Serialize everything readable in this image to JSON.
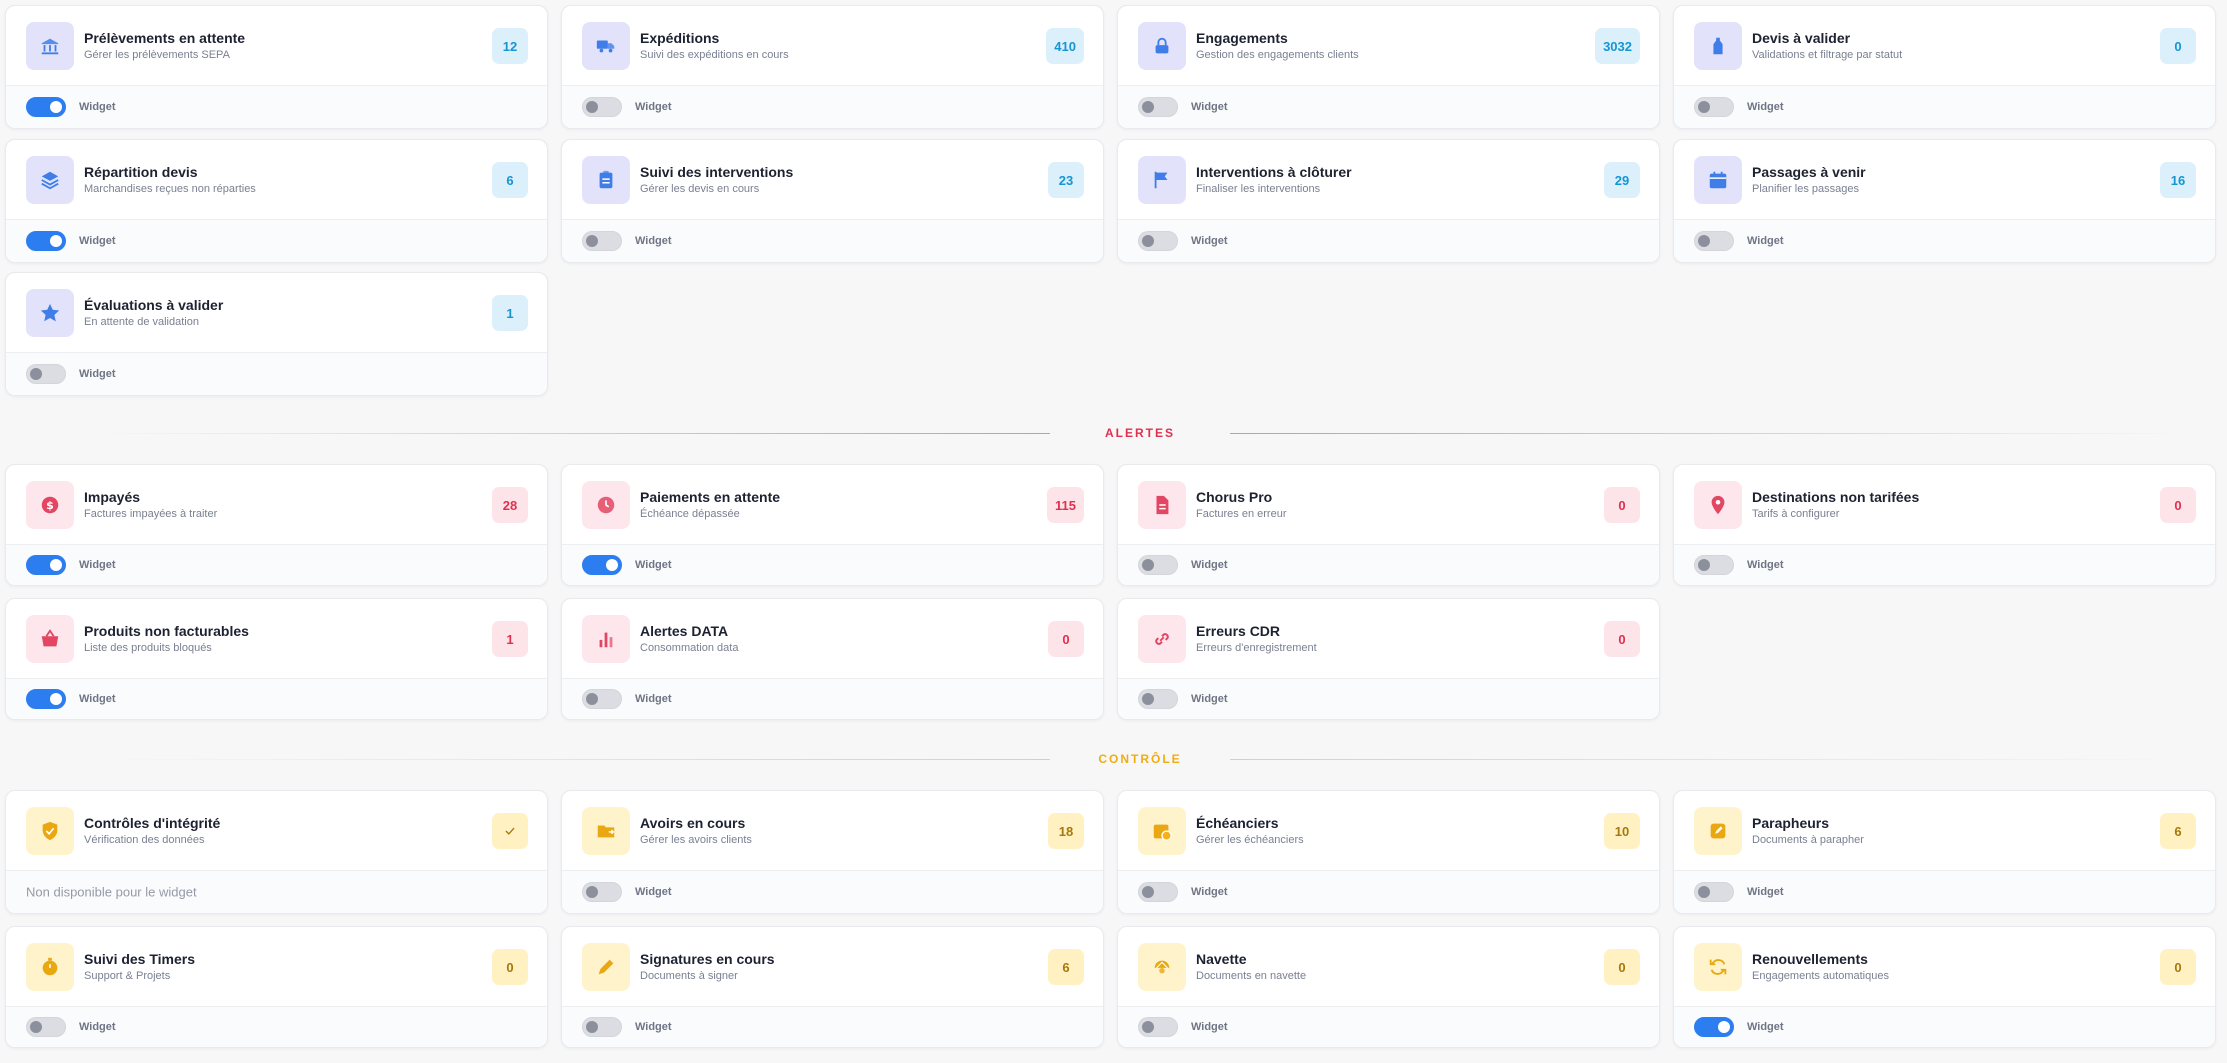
{
  "toggle_label": "Widget",
  "colors": {
    "blue": "#2c7ef0",
    "red": "#e0304f",
    "yellow": "#f0ad12"
  },
  "groups": [
    {
      "theme": "blue",
      "section_label": "",
      "cards": [
        {
          "title": "Prélèvements en attente",
          "subtitle": "Gérer les prélèvements SEPA",
          "count": "12",
          "icon": "bank-icon",
          "widget_on": true
        },
        {
          "title": "Expéditions",
          "subtitle": "Suivi des expéditions en cours",
          "count": "410",
          "icon": "truck-icon",
          "widget_on": false
        },
        {
          "title": "Engagements",
          "subtitle": "Gestion des engagements clients",
          "count": "3032",
          "icon": "lock-icon",
          "widget_on": false
        },
        {
          "title": "Devis à valider",
          "subtitle": "Validations et filtrage par statut",
          "count": "0",
          "icon": "filter-icon",
          "widget_on": false
        },
        {
          "title": "Répartition devis",
          "subtitle": "Marchandises reçues non réparties",
          "count": "6",
          "icon": "layers-icon",
          "widget_on": true
        },
        {
          "title": "Suivi des interventions",
          "subtitle": "Gérer les devis en cours",
          "count": "23",
          "icon": "clipboard-icon",
          "widget_on": false
        },
        {
          "title": "Interventions à clôturer",
          "subtitle": "Finaliser les interventions",
          "count": "29",
          "icon": "flag-icon",
          "widget_on": false
        },
        {
          "title": "Passages à venir",
          "subtitle": "Planifier les passages",
          "count": "16",
          "icon": "calendar-icon",
          "widget_on": false
        },
        {
          "title": "Évaluations à valider",
          "subtitle": "En attente de validation",
          "count": "1",
          "icon": "star-icon",
          "widget_on": false
        }
      ]
    },
    {
      "theme": "red",
      "section_label": "ALERTES",
      "cards": [
        {
          "title": "Impayés",
          "subtitle": "Factures impayées à traiter",
          "count": "28",
          "icon": "dollar-icon",
          "widget_on": true
        },
        {
          "title": "Paiements en attente",
          "subtitle": "Échéance dépassée",
          "count": "115",
          "icon": "clock-icon",
          "widget_on": true
        },
        {
          "title": "Chorus Pro",
          "subtitle": "Factures en erreur",
          "count": "0",
          "icon": "document-icon",
          "widget_on": false
        },
        {
          "title": "Destinations non tarifées",
          "subtitle": "Tarifs à configurer",
          "count": "0",
          "icon": "pin-icon",
          "widget_on": false
        },
        {
          "title": "Produits non facturables",
          "subtitle": "Liste des produits bloqués",
          "count": "1",
          "icon": "basket-icon",
          "widget_on": true
        },
        {
          "title": "Alertes DATA",
          "subtitle": "Consommation data",
          "count": "0",
          "icon": "bars-icon",
          "widget_on": false
        },
        {
          "title": "Erreurs CDR",
          "subtitle": "Erreurs d'enregistrement",
          "count": "0",
          "icon": "link-icon",
          "widget_on": false
        }
      ]
    },
    {
      "theme": "yellow",
      "section_label": "CONTRÔLE",
      "cards": [
        {
          "title": "Contrôles d'intégrité",
          "subtitle": "Vérification des données",
          "count": "",
          "badge_icon": "check-icon",
          "icon": "shield-check-icon",
          "widget_available": false,
          "na_text": "Non disponible pour le widget"
        },
        {
          "title": "Avoirs en cours",
          "subtitle": "Gérer les avoirs clients",
          "count": "18",
          "icon": "folder-arrow-icon",
          "widget_on": false
        },
        {
          "title": "Échéanciers",
          "subtitle": "Gérer les échéanciers",
          "count": "10",
          "icon": "calendar-clock-icon",
          "widget_on": false
        },
        {
          "title": "Parapheurs",
          "subtitle": "Documents à parapher",
          "count": "6",
          "icon": "pen-square-icon",
          "widget_on": false
        },
        {
          "title": "Suivi des Timers",
          "subtitle": "Support & Projets",
          "count": "0",
          "icon": "stopwatch-icon",
          "widget_on": false
        },
        {
          "title": "Signatures en cours",
          "subtitle": "Documents à signer",
          "count": "6",
          "icon": "pen-icon",
          "widget_on": false
        },
        {
          "title": "Navette",
          "subtitle": "Documents en navette",
          "count": "0",
          "icon": "shuttle-icon",
          "widget_on": false
        },
        {
          "title": "Renouvellements",
          "subtitle": "Engagements automatiques",
          "count": "0",
          "icon": "refresh-icon",
          "widget_on": true
        }
      ]
    }
  ]
}
